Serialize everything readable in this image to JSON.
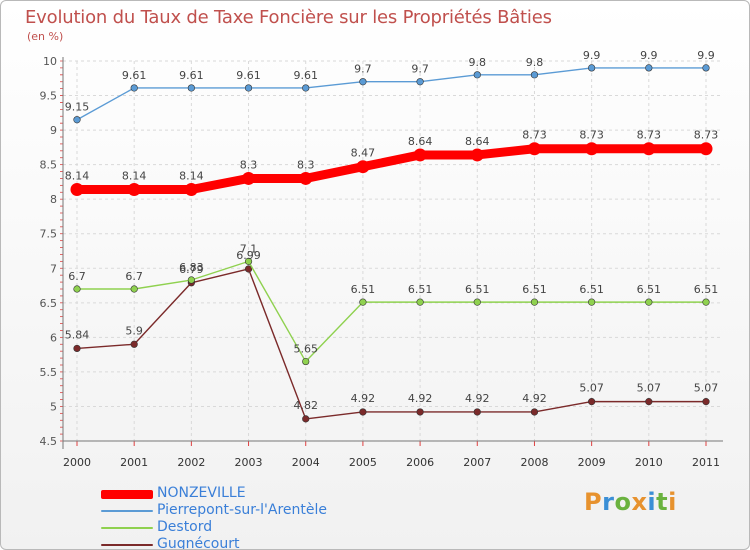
{
  "chart_data": {
    "type": "line",
    "title": "Evolution du Taux de Taxe Foncière sur les Propriétés Bâties",
    "ylabel": "(en %)",
    "xlabel": "",
    "categories": [
      "2000",
      "2001",
      "2002",
      "2003",
      "2004",
      "2005",
      "2006",
      "2007",
      "2008",
      "2009",
      "2010",
      "2011"
    ],
    "ylim": [
      4.5,
      10
    ],
    "yticks": [
      4.5,
      5,
      5.5,
      6,
      6.5,
      7,
      7.5,
      8,
      8.5,
      9,
      9.5,
      10
    ],
    "ytick_labels": [
      "4.5",
      "5",
      "5.5",
      "6",
      "6.5",
      "7",
      "7.5",
      "8",
      "8.5",
      "9",
      "9.5",
      "10"
    ],
    "series": [
      {
        "name": "NONZEVILLE",
        "color": "#ff0000",
        "values": [
          8.14,
          8.14,
          8.14,
          8.3,
          8.3,
          8.47,
          8.64,
          8.64,
          8.73,
          8.73,
          8.73,
          8.73
        ],
        "labels": [
          "8.14",
          "8.14",
          "8.14",
          "8.3",
          "8.3",
          "8.47",
          "8.64",
          "8.64",
          "8.73",
          "8.73",
          "8.73",
          "8.73"
        ]
      },
      {
        "name": "Pierrepont-sur-l'Arentèle",
        "color": "#5b9bd5",
        "values": [
          9.15,
          9.61,
          9.61,
          9.61,
          9.61,
          9.7,
          9.7,
          9.8,
          9.8,
          9.9,
          9.9,
          9.9
        ],
        "labels": [
          "9.15",
          "9.61",
          "9.61",
          "9.61",
          "9.61",
          "9.7",
          "9.7",
          "9.8",
          "9.8",
          "9.9",
          "9.9",
          "9.9"
        ]
      },
      {
        "name": "Destord",
        "color": "#8fd14f",
        "values": [
          6.7,
          6.7,
          6.83,
          7.1,
          5.65,
          6.51,
          6.51,
          6.51,
          6.51,
          6.51,
          6.51,
          6.51
        ],
        "labels": [
          "6.7",
          "6.7",
          "6.83",
          "7.1",
          "5.65",
          "6.51",
          "6.51",
          "6.51",
          "6.51",
          "6.51",
          "6.51",
          "6.51"
        ]
      },
      {
        "name": "Gugnécourt",
        "color": "#7b2a2a",
        "values": [
          5.84,
          5.9,
          6.79,
          6.99,
          4.82,
          4.92,
          4.92,
          4.92,
          4.92,
          5.07,
          5.07,
          5.07
        ],
        "labels": [
          "5.84",
          "5.9",
          "6.79",
          "6.99",
          "4.82",
          "4.92",
          "4.92",
          "4.92",
          "4.92",
          "5.07",
          "5.07",
          "5.07"
        ]
      }
    ]
  },
  "legend": {
    "items": [
      {
        "label": "NONZEVILLE",
        "color": "#ff0000"
      },
      {
        "label": "Pierrepont-sur-l'Arentèle",
        "color": "#5b9bd5"
      },
      {
        "label": "Destord",
        "color": "#8fd14f"
      },
      {
        "label": "Gugnécourt",
        "color": "#7b2a2a"
      }
    ]
  },
  "logo": {
    "letters": [
      "P",
      "r",
      "o",
      "x",
      "i",
      "t",
      "i"
    ]
  }
}
